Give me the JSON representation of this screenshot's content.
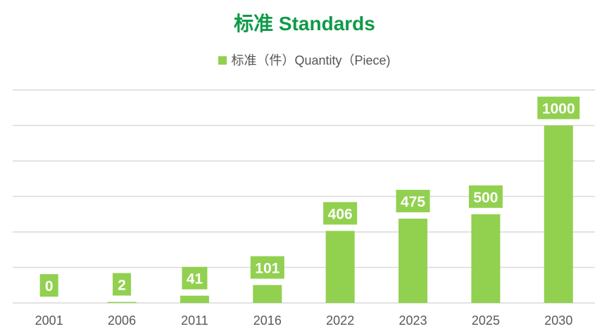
{
  "chart_data": {
    "type": "bar",
    "title": "标准 Standards",
    "categories": [
      "2001",
      "2006",
      "2011",
      "2016",
      "2022",
      "2023",
      "2025",
      "2030"
    ],
    "series": [
      {
        "name": "标准（件）Quantity（Piece)",
        "values": [
          0,
          2,
          41,
          101,
          406,
          475,
          500,
          1000
        ]
      }
    ],
    "data_labels": [
      "0",
      "2",
      "41",
      "101",
      "406",
      "475",
      "500",
      "1000"
    ],
    "ylim": [
      0,
      1200
    ],
    "y_gridline_step": 200,
    "y_tick_labels_shown": false,
    "grid": true,
    "legend_position": "top-center",
    "colors": {
      "bar": "#92d050",
      "title": "#0f9a48",
      "label_text": "#ffffff",
      "axis_text": "#595959",
      "grid": "#d9d9d9"
    }
  }
}
